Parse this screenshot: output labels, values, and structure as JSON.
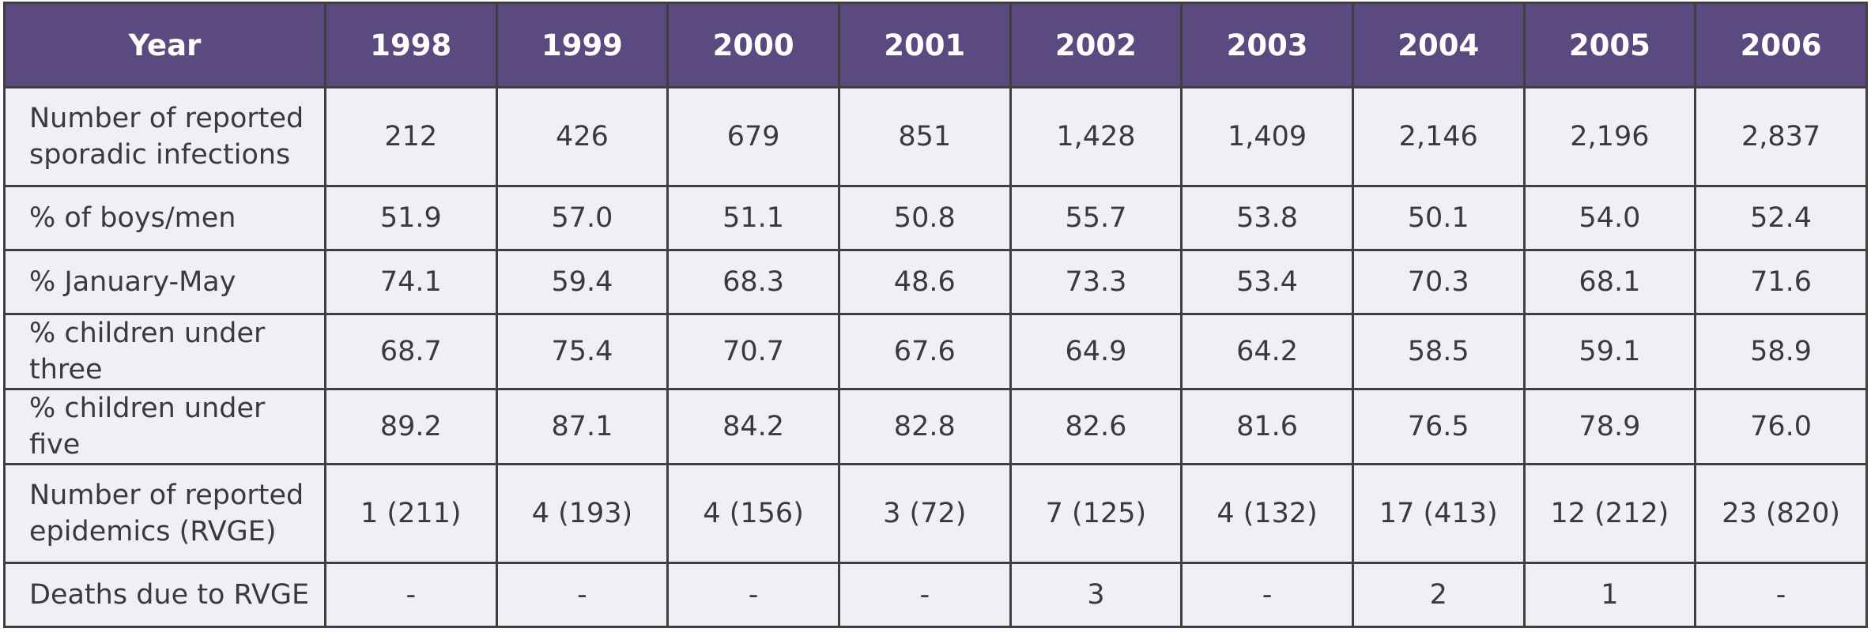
{
  "table": {
    "header": {
      "label": "Year",
      "years": [
        "1998",
        "1999",
        "2000",
        "2001",
        "2002",
        "2003",
        "2004",
        "2005",
        "2006"
      ]
    },
    "rows": [
      {
        "label_line1": "Number of reported",
        "label_line2": "sporadic infections",
        "values": [
          "212",
          "426",
          "679",
          "851",
          "1,428",
          "1,409",
          "2,146",
          "2,196",
          "2,837"
        ]
      },
      {
        "label": "% of boys/men",
        "values": [
          "51.9",
          "57.0",
          "51.1",
          "50.8",
          "55.7",
          "53.8",
          "50.1",
          "54.0",
          "52.4"
        ]
      },
      {
        "label": "% January-May",
        "values": [
          "74.1",
          "59.4",
          "68.3",
          "48.6",
          "73.3",
          "53.4",
          "70.3",
          "68.1",
          "71.6"
        ]
      },
      {
        "label": "% children under three",
        "values": [
          "68.7",
          "75.4",
          "70.7",
          "67.6",
          "64.9",
          "64.2",
          "58.5",
          "59.1",
          "58.9"
        ]
      },
      {
        "label": "% children under five",
        "values": [
          "89.2",
          "87.1",
          "84.2",
          "82.8",
          "82.6",
          "81.6",
          "76.5",
          "78.9",
          "76.0"
        ]
      },
      {
        "label_line1": "Number of reported",
        "label_line2": "epidemics (RVGE)",
        "values": [
          "1 (211)",
          "4 (193)",
          "4 (156)",
          "3 (72)",
          "7 (125)",
          "4 (132)",
          "17 (413)",
          "12 (212)",
          "23 (820)"
        ]
      },
      {
        "label": "Deaths due to RVGE",
        "values": [
          "-",
          "-",
          "-",
          "-",
          "3",
          "-",
          "2",
          "1",
          "-"
        ]
      }
    ]
  },
  "colors": {
    "header_bg": "#5b4a80",
    "cell_bg": "#f1eff6",
    "border": "#3f3f3f"
  }
}
